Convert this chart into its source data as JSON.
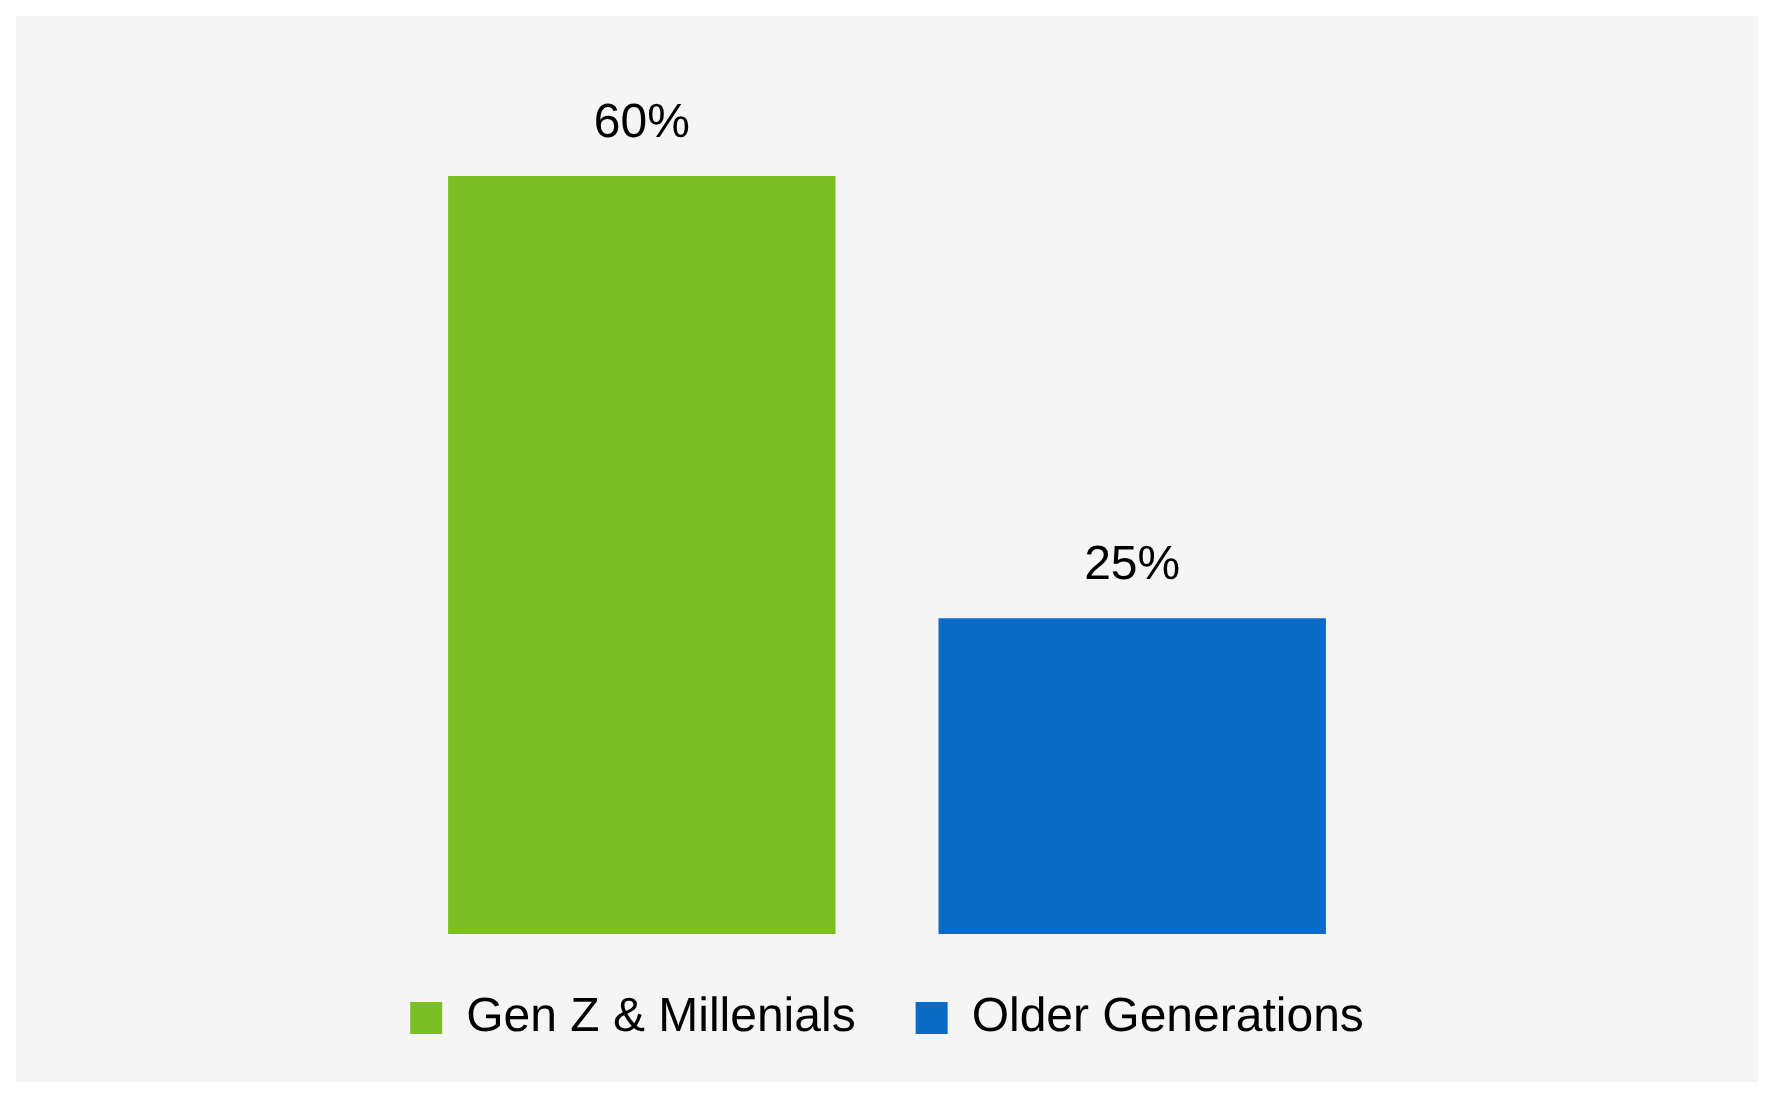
{
  "chart_data": {
    "type": "bar",
    "categories": [
      null
    ],
    "series": [
      {
        "name": "Gen Z & Millenials",
        "color": "#7bbf22",
        "values": [
          60
        ],
        "value_labels": [
          "60%"
        ]
      },
      {
        "name": "Older Generations",
        "color": "#0a6bc7",
        "values": [
          25
        ],
        "value_labels": [
          "25%"
        ]
      }
    ],
    "legend": "bottom"
  }
}
